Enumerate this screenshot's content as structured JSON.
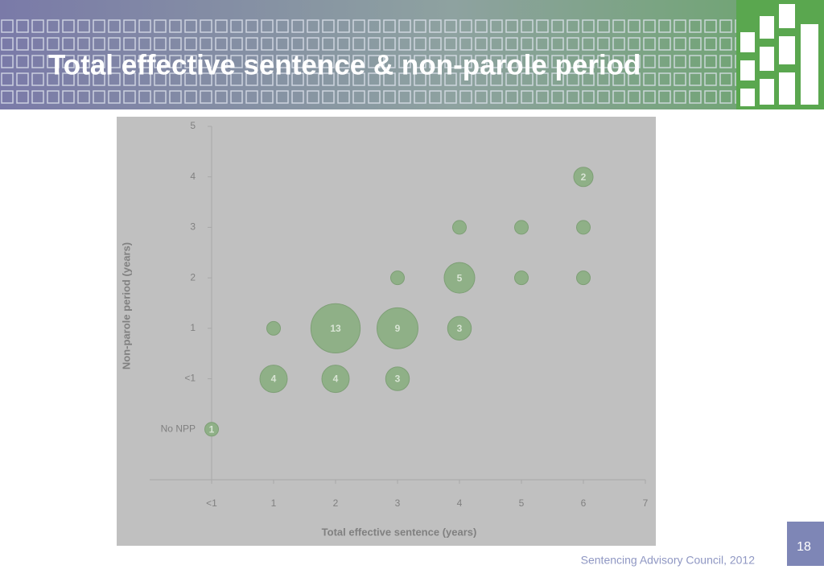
{
  "title": "Total effective sentence & non-parole period",
  "page_number": "18",
  "footer": "Sentencing Advisory Council, 2012",
  "chart_data": {
    "type": "bubble",
    "xlabel": "Total effective sentence (years)",
    "ylabel": "Non-parole period (years)",
    "color": "#8fb087",
    "xlim": [
      -1,
      7
    ],
    "xticks": [
      {
        "value": 0,
        "label": "<1"
      },
      1,
      2,
      3,
      4,
      5,
      6,
      7
    ],
    "ylim": [
      -2,
      5
    ],
    "yticks": [
      {
        "value": -1,
        "label": "No NPP"
      },
      {
        "value": 0,
        "label": "<1"
      },
      1,
      2,
      3,
      4,
      5
    ],
    "x": [
      6,
      4,
      5,
      6,
      3,
      4,
      5,
      6,
      1,
      2,
      3,
      4,
      1,
      2,
      3,
      0
    ],
    "y": [
      4,
      3,
      3,
      3,
      2,
      2,
      2,
      2,
      1,
      1,
      1,
      1,
      0,
      0,
      0,
      -1
    ],
    "sizes": [
      2,
      1,
      1,
      1,
      1,
      5,
      1,
      1,
      1,
      13,
      9,
      3,
      4,
      4,
      3,
      1
    ],
    "value_labels": [
      "2",
      null,
      null,
      null,
      null,
      "5",
      null,
      null,
      null,
      "13",
      "9",
      "3",
      "4",
      "4",
      "3",
      "1"
    ]
  }
}
